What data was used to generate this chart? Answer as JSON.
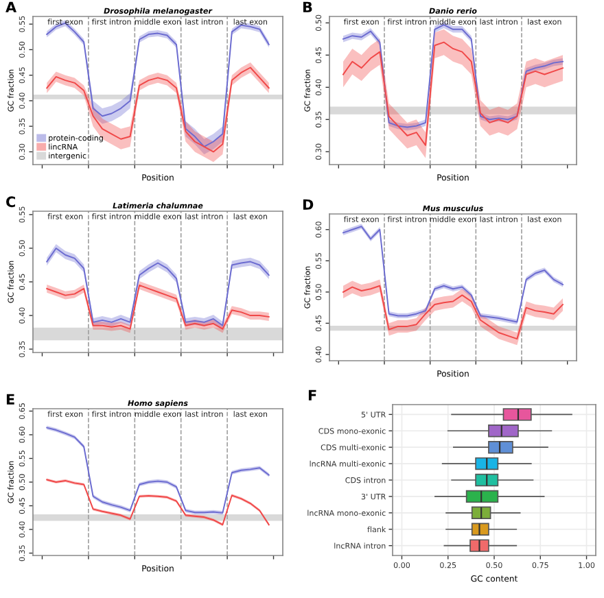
{
  "chart_data": [
    {
      "type": "line",
      "title": "Drosophila melanogaster",
      "xlabel": "Position",
      "ylabel": "GC fraction",
      "tick_labels": "y",
      "legend": "bottom left",
      "categories": [
        null,
        null,
        null,
        null,
        null,
        null,
        null,
        null,
        null,
        null,
        null,
        null,
        null,
        null,
        null,
        null,
        null,
        null,
        null,
        null,
        null,
        null,
        null,
        null,
        null
      ],
      "ylim": [
        0.275,
        0.565
      ],
      "yticks": [
        {
          "value": 0.3,
          "label": "0.30"
        },
        {
          "value": 0.35,
          "label": "0.35"
        },
        {
          "value": 0.4,
          "label": "0.40"
        },
        {
          "value": 0.45,
          "label": "0.45"
        },
        {
          "value": 0.5,
          "label": "0.50"
        },
        {
          "value": 0.55,
          "label": "0.55"
        }
      ],
      "series": [
        {
          "name": "protein-coding",
          "color": "#6b6bd0",
          "values": [
            0.53,
            0.545,
            0.552,
            0.535,
            0.515,
            0.385,
            0.37,
            0.375,
            0.385,
            0.4,
            0.52,
            0.53,
            0.532,
            0.528,
            0.51,
            0.345,
            0.33,
            0.31,
            0.32,
            0.335,
            0.535,
            0.548,
            0.545,
            0.54,
            0.51
          ],
          "lower": [
            0.524,
            0.539,
            0.546,
            0.529,
            0.509,
            0.37,
            0.355,
            0.36,
            0.37,
            0.385,
            0.514,
            0.524,
            0.526,
            0.522,
            0.504,
            0.33,
            0.315,
            0.295,
            0.305,
            0.32,
            0.529,
            0.542,
            0.539,
            0.534,
            0.504
          ],
          "upper": [
            0.536,
            0.551,
            0.558,
            0.541,
            0.521,
            0.4,
            0.385,
            0.39,
            0.4,
            0.415,
            0.526,
            0.536,
            0.538,
            0.534,
            0.516,
            0.36,
            0.345,
            0.325,
            0.335,
            0.35,
            0.541,
            0.554,
            0.551,
            0.546,
            0.516
          ]
        },
        {
          "name": "lincRNA",
          "color": "#f04848",
          "values": [
            0.425,
            0.447,
            0.44,
            0.435,
            0.42,
            0.37,
            0.345,
            0.335,
            0.325,
            0.33,
            0.43,
            0.44,
            0.445,
            0.44,
            0.425,
            0.34,
            0.32,
            0.31,
            0.3,
            0.315,
            0.44,
            0.455,
            0.465,
            0.445,
            0.425
          ],
          "lower": [
            0.415,
            0.437,
            0.43,
            0.425,
            0.41,
            0.35,
            0.325,
            0.315,
            0.305,
            0.31,
            0.42,
            0.43,
            0.435,
            0.43,
            0.415,
            0.32,
            0.3,
            0.29,
            0.28,
            0.295,
            0.43,
            0.445,
            0.455,
            0.435,
            0.415
          ],
          "upper": [
            0.435,
            0.457,
            0.45,
            0.445,
            0.43,
            0.39,
            0.365,
            0.355,
            0.345,
            0.35,
            0.44,
            0.45,
            0.455,
            0.45,
            0.435,
            0.36,
            0.34,
            0.33,
            0.32,
            0.335,
            0.45,
            0.465,
            0.475,
            0.455,
            0.435
          ]
        }
      ],
      "bands": [
        {
          "axis": "y",
          "from": 0.403,
          "to": 0.412,
          "label": "intergenic",
          "color": "#d9d9d9"
        }
      ],
      "annotations": [
        "A",
        "first exon",
        "first intron",
        "middle exon",
        "last intron",
        "last exon"
      ]
    },
    {
      "type": "line",
      "title": "Danio rerio",
      "xlabel": "Position",
      "ylabel": "GC fraction",
      "tick_labels": "y",
      "categories": [
        null,
        null,
        null,
        null,
        null,
        null,
        null,
        null,
        null,
        null,
        null,
        null,
        null,
        null,
        null,
        null,
        null,
        null,
        null,
        null,
        null,
        null,
        null,
        null,
        null
      ],
      "ylim": [
        0.28,
        0.51
      ],
      "yticks": [
        {
          "value": 0.3,
          "label": "0.30"
        },
        {
          "value": 0.35,
          "label": "0.35"
        },
        {
          "value": 0.4,
          "label": "0.40"
        },
        {
          "value": 0.45,
          "label": "0.45"
        },
        {
          "value": 0.5,
          "label": "0.50"
        }
      ],
      "series": [
        {
          "color": "#6b6bd0",
          "values": [
            0.475,
            0.48,
            0.478,
            0.487,
            0.47,
            0.345,
            0.34,
            0.338,
            0.34,
            0.345,
            0.49,
            0.497,
            0.49,
            0.49,
            0.475,
            0.355,
            0.35,
            0.352,
            0.35,
            0.355,
            0.425,
            0.43,
            0.433,
            0.438,
            0.44
          ],
          "lower": [
            0.47,
            0.475,
            0.473,
            0.482,
            0.465,
            0.34,
            0.335,
            0.333,
            0.335,
            0.34,
            0.485,
            0.492,
            0.485,
            0.485,
            0.47,
            0.35,
            0.345,
            0.347,
            0.345,
            0.35,
            0.42,
            0.425,
            0.428,
            0.433,
            0.435
          ],
          "upper": [
            0.48,
            0.485,
            0.483,
            0.492,
            0.475,
            0.35,
            0.345,
            0.343,
            0.345,
            0.35,
            0.495,
            0.502,
            0.495,
            0.495,
            0.48,
            0.36,
            0.355,
            0.357,
            0.355,
            0.36,
            0.43,
            0.435,
            0.438,
            0.443,
            0.445
          ]
        },
        {
          "color": "#f04848",
          "values": [
            0.42,
            0.44,
            0.43,
            0.445,
            0.455,
            0.355,
            0.34,
            0.325,
            0.33,
            0.31,
            0.465,
            0.47,
            0.46,
            0.455,
            0.44,
            0.36,
            0.345,
            0.35,
            0.345,
            0.355,
            0.42,
            0.425,
            0.42,
            0.425,
            0.43
          ],
          "lower": [
            0.4,
            0.42,
            0.41,
            0.425,
            0.435,
            0.335,
            0.32,
            0.305,
            0.31,
            0.29,
            0.445,
            0.45,
            0.44,
            0.435,
            0.42,
            0.34,
            0.325,
            0.33,
            0.325,
            0.335,
            0.4,
            0.405,
            0.4,
            0.405,
            0.41
          ],
          "upper": [
            0.44,
            0.46,
            0.45,
            0.465,
            0.475,
            0.375,
            0.36,
            0.345,
            0.35,
            0.33,
            0.485,
            0.49,
            0.48,
            0.475,
            0.46,
            0.38,
            0.365,
            0.37,
            0.365,
            0.375,
            0.44,
            0.445,
            0.44,
            0.445,
            0.45
          ]
        }
      ],
      "bands": [
        {
          "axis": "y",
          "from": 0.358,
          "to": 0.37,
          "color": "#d9d9d9"
        }
      ],
      "annotations": [
        "B",
        "first exon",
        "first intron",
        "middle exon",
        "last intron",
        "last exon"
      ]
    },
    {
      "type": "line",
      "title": "Latimeria chalumnae",
      "ylabel": "GC fraction",
      "tick_labels": "y",
      "categories": [
        null,
        null,
        null,
        null,
        null,
        null,
        null,
        null,
        null,
        null,
        null,
        null,
        null,
        null,
        null,
        null,
        null,
        null,
        null,
        null,
        null,
        null,
        null,
        null,
        null
      ],
      "ylim": [
        0.345,
        0.555
      ],
      "yticks": [
        {
          "value": 0.35,
          "label": "0.35"
        },
        {
          "value": 0.4,
          "label": "0.40"
        },
        {
          "value": 0.45,
          "label": "0.45"
        },
        {
          "value": 0.5,
          "label": "0.50"
        },
        {
          "value": 0.55,
          "label": "0.55"
        }
      ],
      "series": [
        {
          "color": "#6b6bd0",
          "values": [
            0.48,
            0.5,
            0.49,
            0.485,
            0.47,
            0.39,
            0.393,
            0.39,
            0.395,
            0.39,
            0.46,
            0.47,
            0.478,
            0.47,
            0.455,
            0.39,
            0.392,
            0.39,
            0.395,
            0.385,
            0.475,
            0.478,
            0.48,
            0.475,
            0.46
          ],
          "lower": [
            0.474,
            0.494,
            0.484,
            0.479,
            0.464,
            0.384,
            0.387,
            0.384,
            0.389,
            0.384,
            0.454,
            0.464,
            0.472,
            0.464,
            0.449,
            0.384,
            0.386,
            0.384,
            0.389,
            0.379,
            0.469,
            0.472,
            0.474,
            0.469,
            0.454
          ],
          "upper": [
            0.486,
            0.506,
            0.496,
            0.491,
            0.476,
            0.396,
            0.399,
            0.396,
            0.401,
            0.396,
            0.466,
            0.476,
            0.484,
            0.476,
            0.461,
            0.396,
            0.398,
            0.396,
            0.401,
            0.391,
            0.481,
            0.484,
            0.486,
            0.481,
            0.466
          ]
        },
        {
          "color": "#f04848",
          "values": [
            0.44,
            0.435,
            0.43,
            0.432,
            0.44,
            0.385,
            0.385,
            0.383,
            0.385,
            0.38,
            0.445,
            0.44,
            0.435,
            0.43,
            0.425,
            0.385,
            0.388,
            0.385,
            0.388,
            0.38,
            0.408,
            0.405,
            0.4,
            0.4,
            0.398
          ],
          "lower": [
            0.434,
            0.429,
            0.424,
            0.426,
            0.434,
            0.379,
            0.379,
            0.377,
            0.379,
            0.374,
            0.439,
            0.434,
            0.429,
            0.424,
            0.419,
            0.379,
            0.382,
            0.379,
            0.382,
            0.374,
            0.402,
            0.399,
            0.394,
            0.394,
            0.392
          ],
          "upper": [
            0.446,
            0.441,
            0.436,
            0.438,
            0.446,
            0.391,
            0.391,
            0.389,
            0.391,
            0.386,
            0.451,
            0.446,
            0.441,
            0.436,
            0.431,
            0.391,
            0.394,
            0.391,
            0.394,
            0.386,
            0.414,
            0.411,
            0.406,
            0.406,
            0.404
          ]
        }
      ],
      "bands": [
        {
          "axis": "y",
          "from": 0.363,
          "to": 0.382,
          "color": "#d9d9d9"
        }
      ],
      "annotations": [
        "C",
        "first exon",
        "first intron",
        "middle exon",
        "last intron",
        "last exon"
      ]
    },
    {
      "type": "line",
      "title": "Mus musculus",
      "xlabel": "Position",
      "ylabel": "GC fraction",
      "tick_labels": "y",
      "categories": [
        null,
        null,
        null,
        null,
        null,
        null,
        null,
        null,
        null,
        null,
        null,
        null,
        null,
        null,
        null,
        null,
        null,
        null,
        null,
        null,
        null,
        null,
        null,
        null,
        null
      ],
      "ylim": [
        0.39,
        0.625
      ],
      "yticks": [
        {
          "value": 0.4,
          "label": "0.40"
        },
        {
          "value": 0.45,
          "label": "0.45"
        },
        {
          "value": 0.5,
          "label": "0.50"
        },
        {
          "value": 0.55,
          "label": "0.55"
        },
        {
          "value": 0.6,
          "label": "0.60"
        }
      ],
      "series": [
        {
          "color": "#6b6bd0",
          "values": [
            0.595,
            0.6,
            0.605,
            0.585,
            0.6,
            0.465,
            0.462,
            0.462,
            0.465,
            0.47,
            0.505,
            0.51,
            0.505,
            0.508,
            0.495,
            0.462,
            0.46,
            0.458,
            0.455,
            0.452,
            0.52,
            0.53,
            0.535,
            0.52,
            0.512
          ],
          "lower": [
            0.591,
            0.596,
            0.601,
            0.581,
            0.596,
            0.461,
            0.458,
            0.458,
            0.461,
            0.466,
            0.501,
            0.506,
            0.501,
            0.504,
            0.491,
            0.458,
            0.456,
            0.454,
            0.451,
            0.448,
            0.516,
            0.526,
            0.531,
            0.516,
            0.508
          ],
          "upper": [
            0.599,
            0.604,
            0.609,
            0.589,
            0.604,
            0.469,
            0.466,
            0.466,
            0.469,
            0.474,
            0.509,
            0.514,
            0.509,
            0.512,
            0.499,
            0.466,
            0.464,
            0.462,
            0.459,
            0.456,
            0.524,
            0.534,
            0.539,
            0.524,
            0.516
          ]
        },
        {
          "color": "#f04848",
          "values": [
            0.5,
            0.508,
            0.502,
            0.505,
            0.51,
            0.44,
            0.445,
            0.445,
            0.448,
            0.465,
            0.48,
            0.483,
            0.485,
            0.495,
            0.485,
            0.455,
            0.445,
            0.435,
            0.43,
            0.425,
            0.475,
            0.47,
            0.468,
            0.465,
            0.48
          ],
          "lower": [
            0.49,
            0.498,
            0.492,
            0.495,
            0.5,
            0.43,
            0.435,
            0.435,
            0.438,
            0.455,
            0.47,
            0.473,
            0.475,
            0.485,
            0.475,
            0.445,
            0.435,
            0.425,
            0.42,
            0.415,
            0.465,
            0.46,
            0.458,
            0.455,
            0.47
          ],
          "upper": [
            0.51,
            0.518,
            0.512,
            0.515,
            0.52,
            0.45,
            0.455,
            0.455,
            0.458,
            0.475,
            0.49,
            0.493,
            0.495,
            0.505,
            0.495,
            0.465,
            0.455,
            0.445,
            0.44,
            0.435,
            0.485,
            0.48,
            0.478,
            0.475,
            0.49
          ]
        }
      ],
      "bands": [
        {
          "axis": "y",
          "from": 0.438,
          "to": 0.446,
          "color": "#d9d9d9"
        }
      ],
      "annotations": [
        "D",
        "first exon",
        "first intron",
        "middle exon",
        "last intron",
        "last exon"
      ]
    },
    {
      "type": "line",
      "title": "Homo sapiens",
      "xlabel": "Position",
      "ylabel": "GC fraction",
      "tick_labels": "y",
      "categories": [
        null,
        null,
        null,
        null,
        null,
        null,
        null,
        null,
        null,
        null,
        null,
        null,
        null,
        null,
        null,
        null,
        null,
        null,
        null,
        null,
        null,
        null,
        null,
        null,
        null
      ],
      "ylim": [
        0.345,
        0.655
      ],
      "yticks": [
        {
          "value": 0.35,
          "label": "0.35"
        },
        {
          "value": 0.4,
          "label": "0.40"
        },
        {
          "value": 0.45,
          "label": "0.45"
        },
        {
          "value": 0.5,
          "label": "0.50"
        },
        {
          "value": 0.55,
          "label": "0.55"
        },
        {
          "value": 0.6,
          "label": "0.60"
        },
        {
          "value": 0.65,
          "label": "0.65"
        }
      ],
      "series": [
        {
          "color": "#6b6bd0",
          "values": [
            0.615,
            0.61,
            0.603,
            0.595,
            0.575,
            0.47,
            0.458,
            0.452,
            0.447,
            0.44,
            0.495,
            0.5,
            0.502,
            0.5,
            0.49,
            0.44,
            0.436,
            0.436,
            0.437,
            0.435,
            0.52,
            0.525,
            0.527,
            0.53,
            0.515
          ],
          "lower": [
            0.611,
            0.606,
            0.599,
            0.591,
            0.571,
            0.466,
            0.454,
            0.448,
            0.443,
            0.436,
            0.491,
            0.496,
            0.498,
            0.496,
            0.486,
            0.436,
            0.432,
            0.432,
            0.433,
            0.431,
            0.516,
            0.521,
            0.523,
            0.526,
            0.511
          ],
          "upper": [
            0.619,
            0.614,
            0.607,
            0.599,
            0.579,
            0.474,
            0.462,
            0.456,
            0.451,
            0.444,
            0.499,
            0.504,
            0.506,
            0.504,
            0.494,
            0.444,
            0.44,
            0.44,
            0.441,
            0.439,
            0.524,
            0.529,
            0.531,
            0.534,
            0.519
          ]
        },
        {
          "color": "#f04848",
          "values": [
            0.505,
            0.5,
            0.503,
            0.498,
            0.495,
            0.443,
            0.438,
            0.434,
            0.43,
            0.422,
            0.47,
            0.471,
            0.47,
            0.468,
            0.46,
            0.43,
            0.428,
            0.426,
            0.42,
            0.41,
            0.472,
            0.465,
            0.455,
            0.44,
            0.41
          ],
          "lower": [
            0.502,
            0.497,
            0.5,
            0.495,
            0.492,
            0.44,
            0.435,
            0.431,
            0.427,
            0.419,
            0.467,
            0.468,
            0.467,
            0.465,
            0.457,
            0.427,
            0.425,
            0.423,
            0.417,
            0.407,
            0.469,
            0.462,
            0.452,
            0.437,
            0.407
          ],
          "upper": [
            0.508,
            0.503,
            0.506,
            0.501,
            0.498,
            0.446,
            0.441,
            0.437,
            0.433,
            0.425,
            0.473,
            0.474,
            0.473,
            0.471,
            0.463,
            0.433,
            0.431,
            0.429,
            0.423,
            0.413,
            0.475,
            0.468,
            0.458,
            0.443,
            0.413
          ]
        }
      ],
      "bands": [
        {
          "axis": "y",
          "from": 0.418,
          "to": 0.432,
          "color": "#d9d9d9"
        }
      ],
      "annotations": [
        "E",
        "first exon",
        "first intron",
        "middle exon",
        "last intron",
        "last exon"
      ]
    },
    {
      "type": "box",
      "orientation": "horizontal",
      "xlabel": "GC content",
      "grid": true,
      "categories": [
        "5' UTR",
        "CDS mono-exonic",
        "CDS multi-exonic",
        "lncRNA multi-exonic",
        "CDS intron",
        "3' UTR",
        "lncRNA mono-exonic",
        "flank",
        "lncRNA intron"
      ],
      "colors": [
        "#e7569c",
        "#a066c8",
        "#5f8fd6",
        "#19b4e6",
        "#1fbfa0",
        "#2bb24c",
        "#7cae3a",
        "#d99a1e",
        "#f06a6a"
      ],
      "boxes": [
        {
          "low": 0.27,
          "q1": 0.55,
          "median": 0.63,
          "q3": 0.7,
          "high": 0.92
        },
        {
          "low": 0.25,
          "q1": 0.47,
          "median": 0.54,
          "q3": 0.63,
          "high": 0.81
        },
        {
          "low": 0.28,
          "q1": 0.47,
          "median": 0.53,
          "q3": 0.6,
          "high": 0.79
        },
        {
          "low": 0.22,
          "q1": 0.4,
          "median": 0.46,
          "q3": 0.52,
          "high": 0.7
        },
        {
          "low": 0.27,
          "q1": 0.4,
          "median": 0.46,
          "q3": 0.52,
          "high": 0.71
        },
        {
          "low": 0.18,
          "q1": 0.35,
          "median": 0.43,
          "q3": 0.52,
          "high": 0.77
        },
        {
          "low": 0.24,
          "q1": 0.38,
          "median": 0.43,
          "q3": 0.48,
          "high": 0.64
        },
        {
          "low": 0.24,
          "q1": 0.38,
          "median": 0.42,
          "q3": 0.47,
          "high": 0.62
        },
        {
          "low": 0.23,
          "q1": 0.37,
          "median": 0.42,
          "q3": 0.47,
          "high": 0.62
        }
      ],
      "xlim": [
        -0.05,
        1.05
      ],
      "xticks": [
        {
          "value": 0,
          "label": "0.00"
        },
        {
          "value": 0.25,
          "label": "0.25"
        },
        {
          "value": 0.5,
          "label": "0.50"
        },
        {
          "value": 0.75,
          "label": "0.75"
        },
        {
          "value": 1,
          "label": "1.00"
        }
      ],
      "annotations": [
        "F"
      ]
    }
  ]
}
